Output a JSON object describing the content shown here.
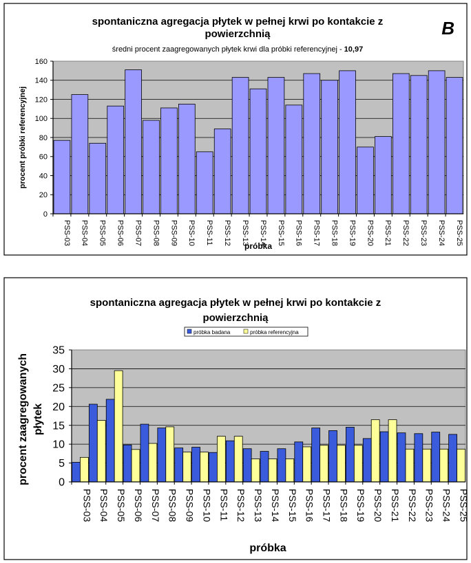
{
  "chart_data": [
    {
      "type": "bar",
      "panel_letter": "B",
      "title_line1": "spontaniczna agregacja płytek w pełnej krwi po kontakcie z",
      "title_line2": "powierzchnią",
      "subtitle_prefix": "średni procent zaagregowanych płytek krwi dla próbki referencyjnej - ",
      "subtitle_value": "10,97",
      "xlabel": "próbka",
      "ylabel": "procent próbki referencyjnej",
      "ylim": [
        0,
        160
      ],
      "yticks": [
        "0",
        "20",
        "40",
        "60",
        "80",
        "100",
        "120",
        "140",
        "160"
      ],
      "categories": [
        "PSS-03",
        "PSS-04",
        "PSS-05",
        "PSS-06",
        "PSS-07",
        "PSS-08",
        "PSS-09",
        "PSS-10",
        "PSS-11",
        "PSS-12",
        "PSS-13",
        "PSS-14",
        "PSS-15",
        "PSS-16",
        "PSS-17",
        "PSS-18",
        "PSS-19",
        "PSS-20",
        "PSS-21",
        "PSS-22",
        "PSS-23",
        "PSS-24",
        "PSS-25"
      ],
      "values": [
        77,
        125,
        74,
        113,
        151,
        98,
        111,
        115,
        65,
        89,
        143,
        131,
        143,
        114,
        147,
        140,
        150,
        70,
        81,
        147,
        145,
        150,
        143
      ],
      "bar_color": "#9999ff",
      "grid": true
    },
    {
      "type": "bar",
      "title_line1": "spontaniczna agregacja płytek w pełnej krwi po kontakcie z",
      "title_line2": "powierzchnią",
      "xlabel": "próbka",
      "ylabel_line1": "procent zaagregowanych",
      "ylabel_line2": "płytek",
      "ylim": [
        0,
        35
      ],
      "yticks": [
        "0",
        "5",
        "10",
        "15",
        "20",
        "25",
        "30",
        "35"
      ],
      "legend_position": "top-center",
      "categories": [
        "PSS-03",
        "PSS-04",
        "PSS-05",
        "PSS-06",
        "PSS-07",
        "PSS-08",
        "PSS-09",
        "PSS-10",
        "PSS-11",
        "PSS-12",
        "PSS-13",
        "PSS-14",
        "PSS-15",
        "PSS-16",
        "PSS-17",
        "PSS-18",
        "PSS-19",
        "PSS-20",
        "PSS-21",
        "PSS-22",
        "PSS-23",
        "PSS-24",
        "PSS-25"
      ],
      "series": [
        {
          "name": "próbka badana",
          "color": "#3a5cdc",
          "values": [
            5.2,
            20.6,
            21.9,
            9.8,
            15.3,
            14.3,
            9.0,
            9.2,
            7.8,
            10.9,
            8.8,
            8.1,
            8.8,
            10.6,
            14.3,
            13.6,
            14.5,
            11.5,
            13.3,
            13.0,
            12.8,
            13.2,
            12.6
          ]
        },
        {
          "name": "próbka referencyjna",
          "color": "#ffff99",
          "values": [
            6.5,
            16.3,
            29.5,
            8.6,
            10.2,
            14.6,
            7.9,
            7.9,
            12.1,
            12.1,
            6.1,
            6.1,
            6.1,
            9.3,
            9.7,
            9.7,
            9.7,
            16.5,
            16.5,
            8.7,
            8.7,
            8.7,
            8.7
          ]
        }
      ],
      "grid": true
    }
  ]
}
